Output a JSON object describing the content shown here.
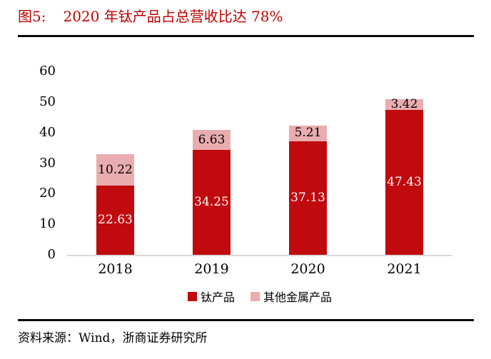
{
  "header": {
    "figure_label": "图5:",
    "title": "2020 年钛产品占总营收比达 78%"
  },
  "chart_data": {
    "type": "bar",
    "stacked": true,
    "title": "2020 年钛产品占总营收比达 78%",
    "xlabel": "",
    "ylabel": "",
    "categories": [
      "2018",
      "2019",
      "2020",
      "2021"
    ],
    "series": [
      {
        "name": "钛产品",
        "color": "#c00a0e",
        "label_color": "#ffffff",
        "values": [
          22.63,
          34.25,
          37.13,
          47.43
        ]
      },
      {
        "name": "其他金属产品",
        "color": "#e9adb0",
        "label_color": "#000000",
        "values": [
          10.22,
          6.63,
          5.21,
          3.42
        ]
      }
    ],
    "ylim": [
      0,
      60
    ],
    "yticks": [
      0,
      10,
      20,
      30,
      40,
      50,
      60
    ],
    "grid": false,
    "legend_position": "bottom",
    "axis_line_color": "#d9d9d9"
  },
  "footer": {
    "source": "资料来源：Wind，浙商证券研究所"
  }
}
